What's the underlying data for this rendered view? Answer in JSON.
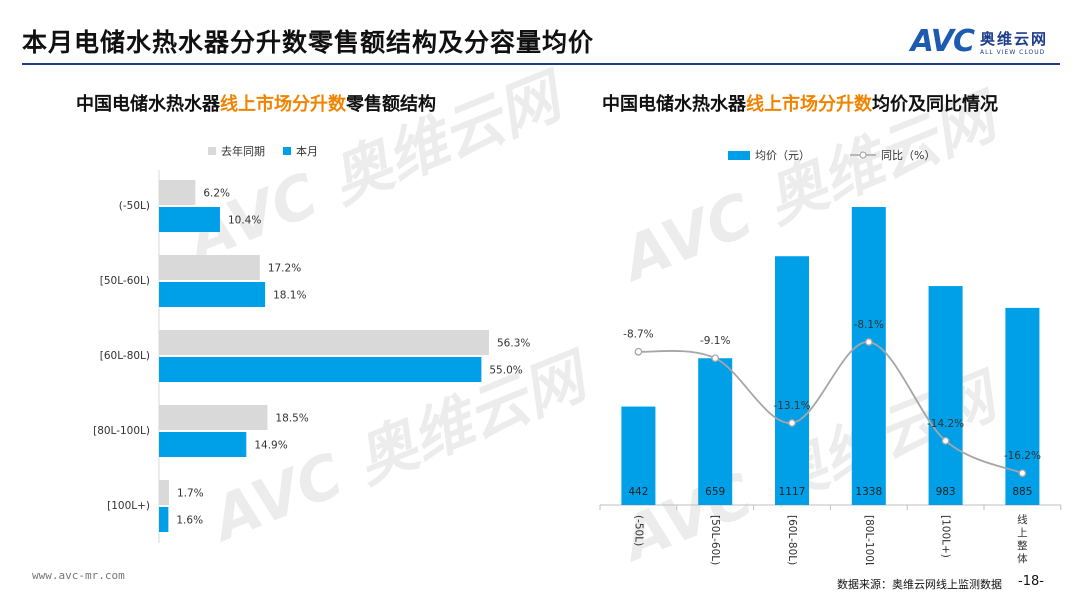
{
  "page": {
    "title": "本月电储水热水器分升数零售额结构及分容量均价",
    "logo_text": "AVC",
    "logo_cn": "奥维云网",
    "logo_en": "ALL VIEW CLOUD",
    "footer_url": "www.avc-mr.com",
    "footer_source": "数据来源：奥维云网线上监测数据",
    "page_number": "-18-"
  },
  "left_chart": {
    "title_part1": "中国电储水热水器",
    "title_highlight": "线上市场分升数",
    "title_part3": "零售额结构"
  },
  "right_chart": {
    "title_part1": "中国电储水热水器",
    "title_highlight": "线上市场分升数",
    "title_part3": "均价及同比情况"
  },
  "colors": {
    "accent_blue": "#00a0e9",
    "last_year_gray": "#d9d9d9",
    "highlight_orange": "#f08300",
    "line_gray": "#a6a6a6",
    "title_rule": "#1d3d8c"
  },
  "chart_data": [
    {
      "type": "bar",
      "orientation": "horizontal",
      "categories": [
        "(-50L)",
        "[50L-60L)",
        "[60L-80L)",
        "[80L-100L)",
        "[100L+)"
      ],
      "series": [
        {
          "name": "去年同期",
          "values": [
            6.2,
            17.2,
            56.3,
            18.5,
            1.7
          ],
          "labels": [
            "6.2%",
            "17.2%",
            "56.3%",
            "18.5%",
            "1.7%"
          ]
        },
        {
          "name": "本月",
          "values": [
            10.4,
            18.1,
            55.0,
            14.9,
            1.6
          ],
          "labels": [
            "10.4%",
            "18.1%",
            "55.0%",
            "14.9%",
            "1.6%"
          ]
        }
      ],
      "unit": "%",
      "legend": "top"
    },
    {
      "type": "bar+line",
      "categories": [
        "(-50L)",
        "[50L-60L)",
        "[60L-80L)",
        "[80L-100L)",
        "[100L+)",
        "线上整体"
      ],
      "series": [
        {
          "name": "均价（元）",
          "type": "bar",
          "values": [
            442,
            659,
            1117,
            1338,
            983,
            885
          ],
          "labels": [
            "442",
            "659",
            "1117",
            "1338",
            "983",
            "885"
          ]
        },
        {
          "name": "同比（%）",
          "type": "line",
          "values": [
            -8.7,
            -9.1,
            -13.1,
            -8.1,
            -14.2,
            -16.2
          ],
          "labels": [
            "-8.7%",
            "-9.1%",
            "-13.1%",
            "-8.1%",
            "-14.2%",
            "-16.2%"
          ]
        }
      ],
      "legend": "top"
    }
  ]
}
